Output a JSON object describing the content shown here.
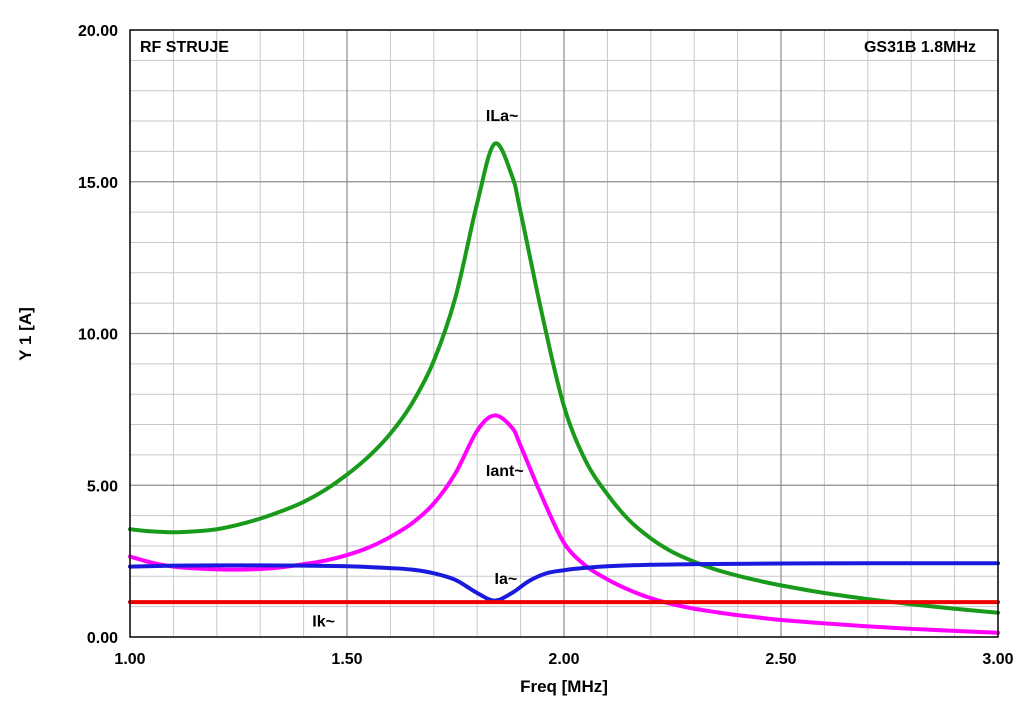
{
  "chart_data": {
    "type": "line",
    "title_left": "RF STRUJE",
    "title_right": "GS31B 1.8MHz",
    "xlabel": "Freq [MHz]",
    "ylabel": "Y 1  [A]",
    "xlim": [
      1.0,
      3.0
    ],
    "ylim": [
      0.0,
      20.0
    ],
    "x_ticks": [
      "1.00",
      "1.50",
      "2.00",
      "2.50",
      "3.00"
    ],
    "y_ticks": [
      "0.00",
      "5.00",
      "10.00",
      "15.00",
      "20.00"
    ],
    "grid": true,
    "series": [
      {
        "name": "ILa~",
        "color": "#1a9a1a",
        "label_at": [
          1.82,
          17.0
        ],
        "points": [
          [
            1.0,
            3.55
          ],
          [
            1.05,
            3.48
          ],
          [
            1.1,
            3.45
          ],
          [
            1.15,
            3.48
          ],
          [
            1.2,
            3.55
          ],
          [
            1.25,
            3.7
          ],
          [
            1.3,
            3.9
          ],
          [
            1.35,
            4.15
          ],
          [
            1.4,
            4.45
          ],
          [
            1.45,
            4.85
          ],
          [
            1.5,
            5.35
          ],
          [
            1.55,
            5.95
          ],
          [
            1.6,
            6.7
          ],
          [
            1.65,
            7.7
          ],
          [
            1.7,
            9.1
          ],
          [
            1.75,
            11.2
          ],
          [
            1.8,
            14.3
          ],
          [
            1.84,
            16.25
          ],
          [
            1.88,
            15.2
          ],
          [
            1.9,
            14.0
          ],
          [
            1.95,
            10.6
          ],
          [
            2.0,
            7.6
          ],
          [
            2.05,
            5.8
          ],
          [
            2.1,
            4.7
          ],
          [
            2.15,
            3.85
          ],
          [
            2.2,
            3.25
          ],
          [
            2.25,
            2.8
          ],
          [
            2.3,
            2.48
          ],
          [
            2.35,
            2.22
          ],
          [
            2.4,
            2.02
          ],
          [
            2.45,
            1.85
          ],
          [
            2.5,
            1.7
          ],
          [
            2.6,
            1.45
          ],
          [
            2.7,
            1.25
          ],
          [
            2.8,
            1.08
          ],
          [
            2.9,
            0.93
          ],
          [
            3.0,
            0.8
          ]
        ]
      },
      {
        "name": "Iant~",
        "color": "#ff00ff",
        "label_at": [
          1.82,
          5.3
        ],
        "points": [
          [
            1.0,
            2.65
          ],
          [
            1.05,
            2.45
          ],
          [
            1.1,
            2.32
          ],
          [
            1.15,
            2.26
          ],
          [
            1.2,
            2.23
          ],
          [
            1.25,
            2.22
          ],
          [
            1.3,
            2.24
          ],
          [
            1.35,
            2.3
          ],
          [
            1.4,
            2.4
          ],
          [
            1.45,
            2.52
          ],
          [
            1.5,
            2.7
          ],
          [
            1.55,
            2.95
          ],
          [
            1.6,
            3.3
          ],
          [
            1.65,
            3.75
          ],
          [
            1.7,
            4.4
          ],
          [
            1.75,
            5.4
          ],
          [
            1.8,
            6.8
          ],
          [
            1.84,
            7.3
          ],
          [
            1.88,
            6.9
          ],
          [
            1.9,
            6.3
          ],
          [
            1.95,
            4.6
          ],
          [
            2.0,
            3.1
          ],
          [
            2.05,
            2.35
          ],
          [
            2.1,
            1.9
          ],
          [
            2.15,
            1.55
          ],
          [
            2.2,
            1.28
          ],
          [
            2.25,
            1.08
          ],
          [
            2.3,
            0.93
          ],
          [
            2.35,
            0.82
          ],
          [
            2.4,
            0.72
          ],
          [
            2.45,
            0.64
          ],
          [
            2.5,
            0.56
          ],
          [
            2.6,
            0.45
          ],
          [
            2.7,
            0.35
          ],
          [
            2.8,
            0.27
          ],
          [
            2.9,
            0.2
          ],
          [
            3.0,
            0.14
          ]
        ]
      },
      {
        "name": "Ia~",
        "color": "#1a1adf",
        "label_at": [
          1.84,
          1.75
        ],
        "points": [
          [
            1.0,
            2.32
          ],
          [
            1.1,
            2.35
          ],
          [
            1.2,
            2.36
          ],
          [
            1.3,
            2.36
          ],
          [
            1.4,
            2.35
          ],
          [
            1.5,
            2.33
          ],
          [
            1.6,
            2.27
          ],
          [
            1.65,
            2.22
          ],
          [
            1.7,
            2.1
          ],
          [
            1.75,
            1.88
          ],
          [
            1.8,
            1.45
          ],
          [
            1.84,
            1.2
          ],
          [
            1.88,
            1.45
          ],
          [
            1.92,
            1.85
          ],
          [
            1.96,
            2.1
          ],
          [
            2.0,
            2.2
          ],
          [
            2.05,
            2.28
          ],
          [
            2.1,
            2.33
          ],
          [
            2.2,
            2.38
          ],
          [
            2.3,
            2.4
          ],
          [
            2.5,
            2.42
          ],
          [
            2.7,
            2.43
          ],
          [
            3.0,
            2.43
          ]
        ]
      },
      {
        "name": "Ik~",
        "color": "#ee0000",
        "label_at": [
          1.42,
          0.35
        ],
        "points": [
          [
            1.0,
            1.15
          ],
          [
            1.5,
            1.15
          ],
          [
            2.0,
            1.15
          ],
          [
            2.5,
            1.15
          ],
          [
            3.0,
            1.15
          ]
        ]
      }
    ]
  }
}
